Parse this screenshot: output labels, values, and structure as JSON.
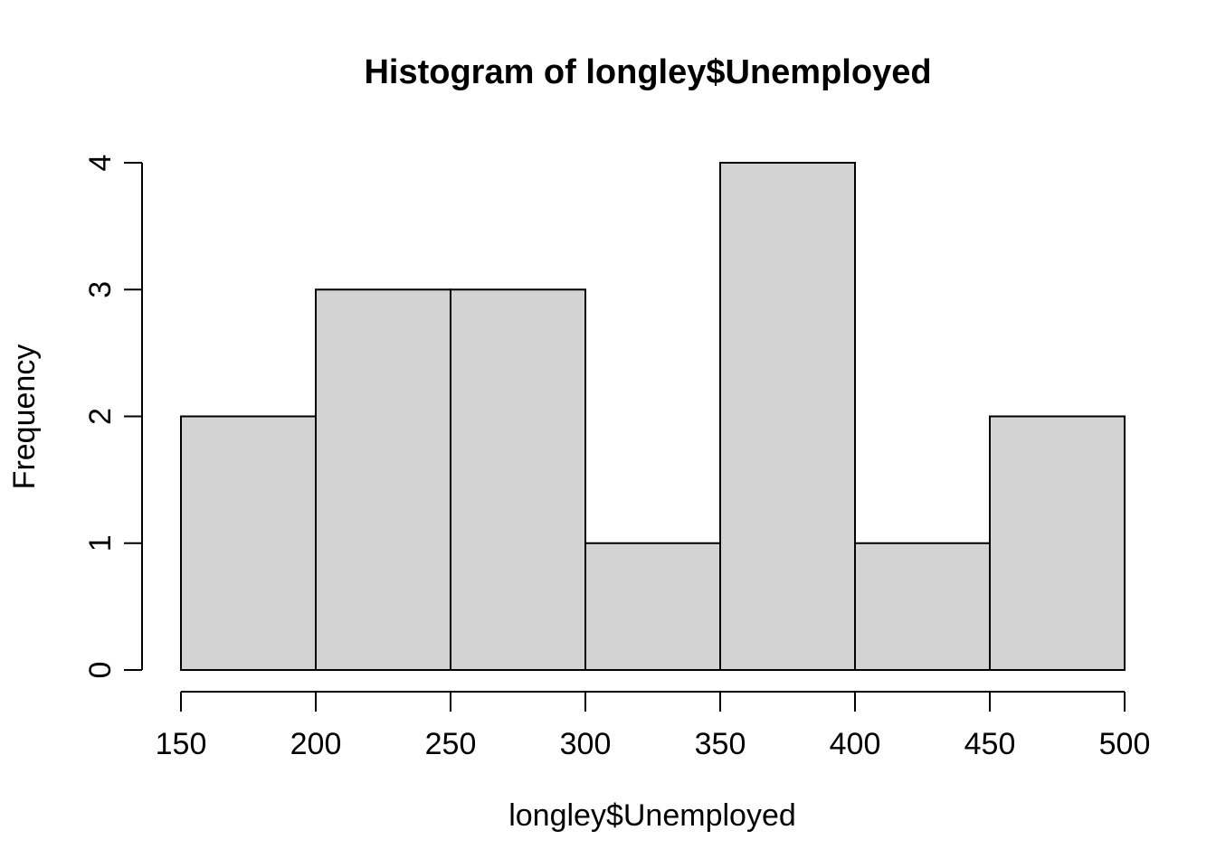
{
  "figure": {
    "background": "#FFFFFF"
  },
  "chart_data": {
    "type": "bar",
    "subtype": "histogram",
    "title": "Histogram of longley$Unemployed",
    "xlabel": "longley$Unemployed",
    "ylabel": "Frequency",
    "bin_edges": [
      150,
      200,
      250,
      300,
      350,
      400,
      450,
      500
    ],
    "counts": [
      2,
      3,
      3,
      1,
      4,
      1,
      2
    ],
    "x_ticks": [
      150,
      200,
      250,
      300,
      350,
      400,
      450,
      500
    ],
    "y_ticks": [
      0,
      1,
      2,
      3,
      4
    ],
    "xlim": [
      150,
      500
    ],
    "ylim": [
      0,
      4
    ],
    "grid": false,
    "legend_position": "none",
    "bar_fill": "#D3D3D3",
    "bar_stroke": "#000000",
    "axis_color": "#000000",
    "text_color": "#000000"
  }
}
